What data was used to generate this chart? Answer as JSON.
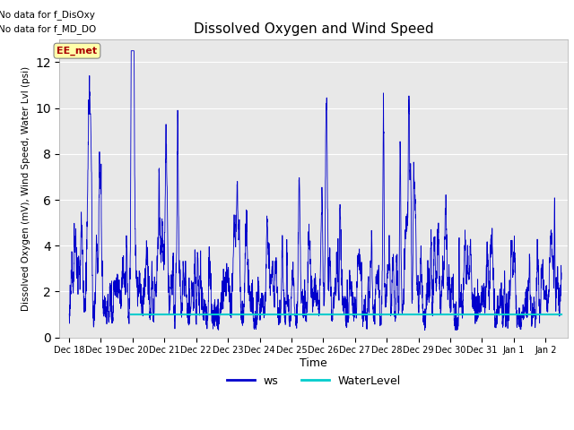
{
  "title": "Dissolved Oxygen and Wind Speed",
  "ylabel": "Dissolved Oxygen (mV), Wind Speed, Water Lvl (psi)",
  "xlabel": "Time",
  "ylim": [
    0,
    13
  ],
  "yticks": [
    0,
    2,
    4,
    6,
    8,
    10,
    12
  ],
  "bg_color": "#e8e8e8",
  "text_no_data1": "No data for f_DisOxy",
  "text_no_data2": "No data for f_MD_DO",
  "annotation_label": "EE_met",
  "annotation_color": "#aa0000",
  "annotation_bg": "#ffffaa",
  "ws_color": "#0000cc",
  "wl_color": "#00cccc",
  "wl_value": 1.0,
  "legend_ws": "ws",
  "legend_wl": "WaterLevel",
  "xtick_labels": [
    "Dec 18",
    "Dec 19",
    "Dec 20",
    "Dec 21",
    "Dec 22",
    "Dec 23",
    "Dec 24",
    "Dec 25",
    "Dec 26",
    "Dec 27",
    "Dec 28",
    "Dec 29",
    "Dec 30",
    "Dec 31",
    "Jan 1",
    "Jan 2"
  ],
  "xtick_positions": [
    0,
    1,
    2,
    3,
    4,
    5,
    6,
    7,
    8,
    9,
    10,
    11,
    12,
    13,
    14,
    15
  ]
}
